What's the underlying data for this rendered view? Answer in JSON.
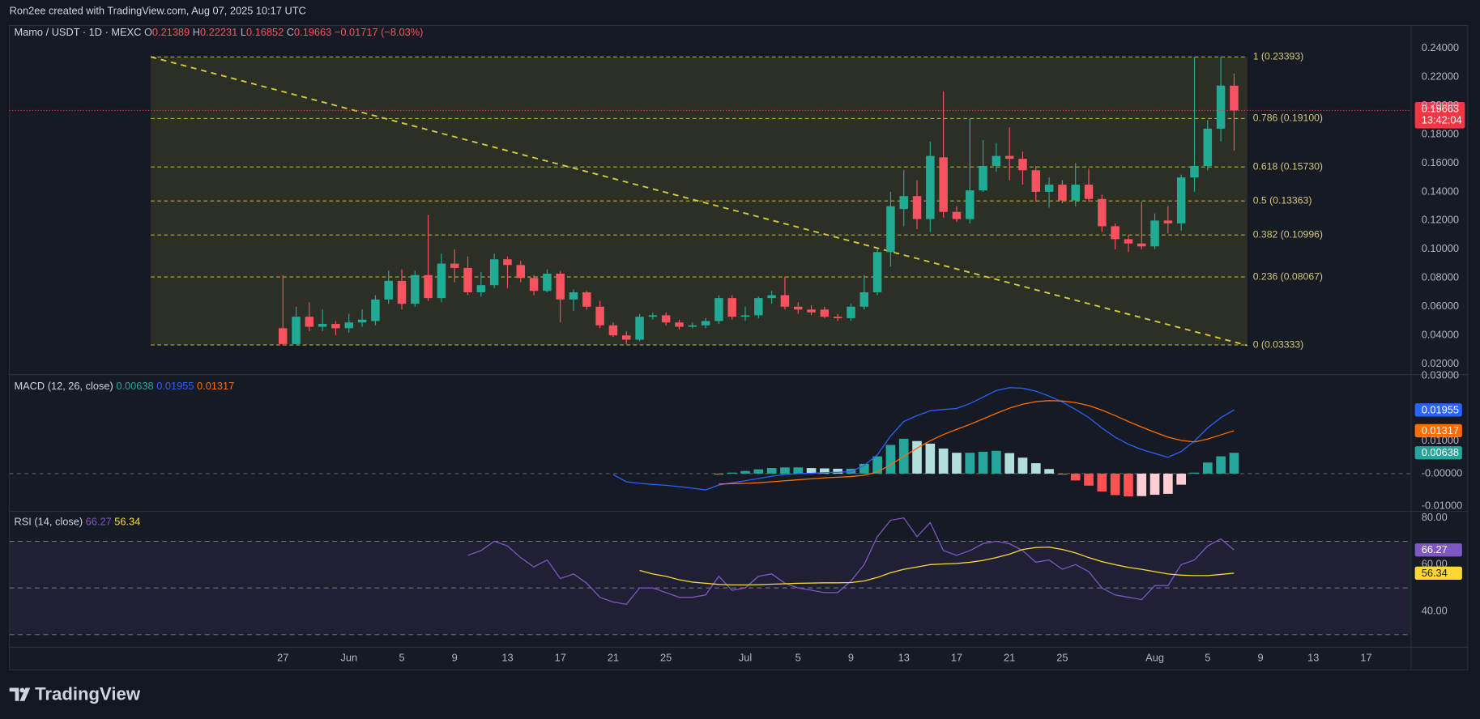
{
  "header": {
    "attribution": "Ron2ee created with TradingView.com, Aug 07, 2025 10:17 UTC",
    "ohlc_labels": [
      "O",
      "H",
      "L",
      "C"
    ],
    "change": "−0.01717 (−8.03%)"
  },
  "branding": "TradingView",
  "chart_data": [
    {
      "type": "candlestick",
      "title": "Mamo / USDT · 1D · MEXC",
      "up_color": "#22ab94",
      "down_color": "#f7525f",
      "open": [
        0.045,
        0.034,
        0.053,
        0.046,
        0.048,
        0.045,
        0.049,
        0.05,
        0.065,
        0.078,
        0.062,
        0.082,
        0.066,
        0.09,
        0.087,
        0.07,
        0.075,
        0.093,
        0.089,
        0.08,
        0.071,
        0.083,
        0.065,
        0.07,
        0.06,
        0.047,
        0.04,
        0.037,
        0.053,
        0.054,
        0.049,
        0.046,
        0.047,
        0.05,
        0.066,
        0.053,
        0.054,
        0.066,
        0.068,
        0.06,
        0.058,
        0.058,
        0.053,
        0.052,
        0.06,
        0.07,
        0.098,
        0.128,
        0.137,
        0.121,
        0.164,
        0.126,
        0.121,
        0.141,
        0.158,
        0.165,
        0.163,
        0.155,
        0.14,
        0.145,
        0.134,
        0.145,
        0.135,
        0.116,
        0.107,
        0.104,
        0.102,
        0.12,
        0.118,
        0.15,
        0.158,
        0.184,
        0.21389
      ],
      "high": [
        0.082,
        0.06,
        0.063,
        0.058,
        0.05,
        0.055,
        0.058,
        0.068,
        0.085,
        0.086,
        0.085,
        0.124,
        0.097,
        0.1,
        0.095,
        0.084,
        0.097,
        0.095,
        0.092,
        0.082,
        0.086,
        0.085,
        0.072,
        0.071,
        0.064,
        0.049,
        0.043,
        0.055,
        0.056,
        0.056,
        0.051,
        0.049,
        0.052,
        0.068,
        0.068,
        0.06,
        0.067,
        0.071,
        0.081,
        0.063,
        0.061,
        0.06,
        0.055,
        0.062,
        0.082,
        0.1,
        0.14,
        0.155,
        0.148,
        0.175,
        0.21,
        0.13,
        0.191,
        0.176,
        0.174,
        0.185,
        0.168,
        0.158,
        0.15,
        0.148,
        0.16,
        0.156,
        0.138,
        0.118,
        0.11,
        0.133,
        0.125,
        0.13,
        0.152,
        0.234,
        0.19,
        0.234,
        0.22231
      ],
      "low": [
        0.033,
        0.034,
        0.043,
        0.043,
        0.04,
        0.042,
        0.046,
        0.047,
        0.062,
        0.058,
        0.06,
        0.064,
        0.063,
        0.077,
        0.068,
        0.067,
        0.073,
        0.073,
        0.077,
        0.068,
        0.07,
        0.049,
        0.057,
        0.058,
        0.045,
        0.039,
        0.034,
        0.036,
        0.051,
        0.047,
        0.044,
        0.045,
        0.045,
        0.048,
        0.051,
        0.05,
        0.052,
        0.062,
        0.058,
        0.055,
        0.054,
        0.052,
        0.05,
        0.05,
        0.058,
        0.068,
        0.088,
        0.116,
        0.114,
        0.112,
        0.122,
        0.119,
        0.118,
        0.14,
        0.154,
        0.148,
        0.145,
        0.133,
        0.129,
        0.132,
        0.13,
        0.133,
        0.112,
        0.1,
        0.098,
        0.1,
        0.1,
        0.111,
        0.113,
        0.14,
        0.155,
        0.175,
        0.16852
      ],
      "close": [
        0.034,
        0.053,
        0.046,
        0.048,
        0.045,
        0.049,
        0.051,
        0.065,
        0.078,
        0.062,
        0.082,
        0.066,
        0.09,
        0.087,
        0.07,
        0.075,
        0.093,
        0.089,
        0.08,
        0.071,
        0.083,
        0.065,
        0.07,
        0.06,
        0.047,
        0.04,
        0.037,
        0.053,
        0.054,
        0.049,
        0.046,
        0.047,
        0.05,
        0.066,
        0.053,
        0.054,
        0.066,
        0.068,
        0.06,
        0.058,
        0.056,
        0.053,
        0.052,
        0.06,
        0.07,
        0.098,
        0.13,
        0.137,
        0.121,
        0.165,
        0.126,
        0.121,
        0.141,
        0.158,
        0.165,
        0.163,
        0.155,
        0.14,
        0.145,
        0.134,
        0.145,
        0.135,
        0.116,
        0.107,
        0.104,
        0.102,
        0.12,
        0.118,
        0.15,
        0.158,
        0.184,
        0.214,
        0.19663
      ],
      "last_price": {
        "countdown": "13:42:04",
        "color": "#f23645"
      },
      "xlim": [
        -20.7,
        85.4
      ],
      "xticks": [
        {
          "value": 0,
          "label": "27"
        },
        {
          "value": 5,
          "label": "Jun"
        },
        {
          "value": 9,
          "label": "5"
        },
        {
          "value": 13,
          "label": "9"
        },
        {
          "value": 17,
          "label": "13"
        },
        {
          "value": 21,
          "label": "17"
        },
        {
          "value": 25,
          "label": "21"
        },
        {
          "value": 29,
          "label": "25"
        },
        {
          "value": 35,
          "label": "Jul"
        },
        {
          "value": 39,
          "label": "5"
        },
        {
          "value": 43,
          "label": "9"
        },
        {
          "value": 47,
          "label": "13"
        },
        {
          "value": 51,
          "label": "17"
        },
        {
          "value": 55,
          "label": "21"
        },
        {
          "value": 59,
          "label": "25"
        },
        {
          "value": 66,
          "label": "Aug"
        },
        {
          "value": 70,
          "label": "5"
        },
        {
          "value": 74,
          "label": "9"
        },
        {
          "value": 78,
          "label": "13"
        },
        {
          "value": 82,
          "label": "17"
        }
      ],
      "ylim": [
        0.0127,
        0.2558
      ],
      "yticks": [
        {
          "value": 0.02,
          "label": "0.02000"
        },
        {
          "value": 0.04,
          "label": "0.04000"
        },
        {
          "value": 0.06,
          "label": "0.06000"
        },
        {
          "value": 0.08,
          "label": "0.08000"
        },
        {
          "value": 0.1,
          "label": "0.10000"
        },
        {
          "value": 0.12,
          "label": "0.12000"
        },
        {
          "value": 0.14,
          "label": "0.14000"
        },
        {
          "value": 0.16,
          "label": "0.16000"
        },
        {
          "value": 0.18,
          "label": "0.18000"
        },
        {
          "value": 0.2,
          "label": "0.20000"
        },
        {
          "value": 0.22,
          "label": "0.22000"
        },
        {
          "value": 0.24,
          "label": "0.24000"
        }
      ],
      "fibonacci": {
        "anchor_x": [
          -10,
          73
        ],
        "color": "#b8ac3c",
        "text_color": "#d2c77a",
        "fill": "rgba(120,123,40,0.22)",
        "levels": [
          {
            "label": "1 (0.23393)",
            "value": 0.23393
          },
          {
            "label": "0.786 (0.19100)",
            "value": 0.191
          },
          {
            "label": "0.618 (0.15730)",
            "value": 0.1573
          },
          {
            "label": "0.5 (0.13363)",
            "value": 0.13363
          },
          {
            "label": "0.382 (0.10996)",
            "value": 0.10996
          },
          {
            "label": "0.236 (0.08067)",
            "value": 0.08067
          },
          {
            "label": "0 (0.03333)",
            "value": 0.03333
          }
        ]
      },
      "trend_line": {
        "x": [
          -10,
          73
        ],
        "y": [
          0.234,
          0.033
        ],
        "color": "#d8cc3a"
      }
    },
    {
      "type": "combo",
      "title": "MACD (12, 26, close)",
      "histogram": {
        "colors": [
          "#26a69a",
          "#b2dfdb",
          "#ff5252",
          "#ffcdd2"
        ],
        "values": [
          null,
          null,
          null,
          null,
          null,
          null,
          null,
          null,
          null,
          null,
          null,
          null,
          null,
          null,
          null,
          null,
          null,
          null,
          null,
          null,
          null,
          null,
          null,
          null,
          null,
          null,
          null,
          null,
          null,
          null,
          null,
          null,
          null,
          -0.0003,
          0.0003,
          0.0008,
          0.0013,
          0.0017,
          0.0019,
          0.0019,
          0.0017,
          0.0016,
          0.0015,
          0.0015,
          0.003,
          0.0053,
          0.0088,
          0.0107,
          0.01,
          0.0092,
          0.0077,
          0.0064,
          0.0064,
          0.0067,
          0.007,
          0.0063,
          0.0049,
          0.0032,
          0.0014,
          -0.0003,
          -0.0021,
          -0.0037,
          -0.0055,
          -0.0066,
          -0.007,
          -0.0069,
          -0.0065,
          -0.0062,
          -0.0034,
          0.0003,
          0.0034,
          0.0053,
          0.00638
        ]
      },
      "series": [
        {
          "color": "#2962ff",
          "badge_text_color": "#ffffff",
          "values": [
            null,
            null,
            null,
            null,
            null,
            null,
            null,
            null,
            null,
            null,
            null,
            null,
            null,
            null,
            null,
            null,
            null,
            null,
            null,
            null,
            null,
            null,
            null,
            null,
            null,
            -0.0003,
            -0.0025,
            -0.003,
            -0.0033,
            -0.0036,
            -0.004,
            -0.0045,
            -0.005,
            -0.0035,
            -0.0028,
            -0.0022,
            -0.0015,
            -0.0008,
            -0.0003,
            0.0,
            0.0001,
            0.0003,
            0.0004,
            0.0006,
            0.0025,
            0.0058,
            0.0115,
            0.016,
            0.0178,
            0.0193,
            0.0197,
            0.02,
            0.0215,
            0.0235,
            0.0255,
            0.0264,
            0.0262,
            0.0253,
            0.0238,
            0.022,
            0.0197,
            0.0172,
            0.014,
            0.0112,
            0.009,
            0.0074,
            0.0062,
            0.005,
            0.0068,
            0.01,
            0.014,
            0.0172,
            0.01955
          ]
        },
        {
          "color": "#ff6d00",
          "badge_text_color": "#ffffff",
          "values": [
            null,
            null,
            null,
            null,
            null,
            null,
            null,
            null,
            null,
            null,
            null,
            null,
            null,
            null,
            null,
            null,
            null,
            null,
            null,
            null,
            null,
            null,
            null,
            null,
            null,
            null,
            null,
            null,
            null,
            null,
            null,
            null,
            null,
            -0.0032,
            -0.0031,
            -0.003,
            -0.0028,
            -0.0025,
            -0.0022,
            -0.0019,
            -0.0016,
            -0.0013,
            -0.0011,
            -0.0009,
            -0.0005,
            0.0005,
            0.0027,
            0.0053,
            0.0078,
            0.0101,
            0.012,
            0.0136,
            0.0151,
            0.0168,
            0.0185,
            0.0201,
            0.0213,
            0.0221,
            0.0224,
            0.0223,
            0.0218,
            0.0209,
            0.0195,
            0.0178,
            0.016,
            0.0143,
            0.0127,
            0.0112,
            0.0102,
            0.0097,
            0.0106,
            0.0119,
            0.01317
          ]
        }
      ],
      "hlines": [
        0
      ],
      "ylim": [
        -0.0116,
        0.0304
      ],
      "yticks": [
        {
          "value": 0.03,
          "label": "0.03000"
        },
        {
          "value": 0.01,
          "label": "0.01000"
        },
        {
          "value": 0,
          "label": "-0.00000"
        },
        {
          "value": -0.01,
          "label": "-0.01000"
        }
      ]
    },
    {
      "type": "line",
      "title": "RSI (14, close)",
      "series": [
        {
          "color": "#7e57c2",
          "badge_text_color": "#ffffff",
          "values": [
            null,
            null,
            null,
            null,
            null,
            null,
            null,
            null,
            null,
            null,
            null,
            null,
            null,
            null,
            64,
            66,
            70,
            68,
            63,
            59,
            62,
            54,
            56,
            52,
            46,
            44,
            43,
            50,
            50,
            48,
            46,
            46,
            47,
            55,
            49,
            50,
            55,
            56,
            52,
            50,
            49,
            48,
            48,
            53,
            60,
            72,
            79,
            80,
            72,
            78,
            66,
            64,
            66,
            69,
            70,
            69,
            66,
            61,
            62,
            58,
            60,
            57,
            50,
            47,
            46,
            45,
            51,
            51,
            60,
            62,
            68,
            71,
            66.27
          ]
        },
        {
          "color": "#fdd835",
          "badge_text_color": "#131722",
          "values": [
            null,
            null,
            null,
            null,
            null,
            null,
            null,
            null,
            null,
            null,
            null,
            null,
            null,
            null,
            null,
            null,
            null,
            null,
            null,
            null,
            null,
            null,
            null,
            null,
            null,
            null,
            null,
            57.5,
            56,
            55,
            53.5,
            52.5,
            52,
            51.5,
            51.3,
            51.3,
            51.4,
            51.6,
            51.8,
            52,
            52.1,
            52.2,
            52.2,
            52.3,
            53,
            54.5,
            56.5,
            58,
            59,
            60,
            60.3,
            60.5,
            61,
            61.8,
            63,
            64.5,
            66.5,
            67.3,
            67.5,
            66.5,
            65,
            63,
            61.3,
            60,
            58.8,
            58,
            57,
            56,
            55.5,
            55.3,
            55.3,
            55.8,
            56.34
          ]
        }
      ],
      "bands": [
        70,
        50,
        30
      ],
      "band_fill": "rgba(126,87,194,0.10)",
      "ylim": [
        24.6,
        82.8
      ],
      "yticks": [
        {
          "value": 80,
          "label": "80.00"
        },
        {
          "value": 60,
          "label": "60.00"
        },
        {
          "value": 40,
          "label": "40.00"
        }
      ]
    }
  ]
}
